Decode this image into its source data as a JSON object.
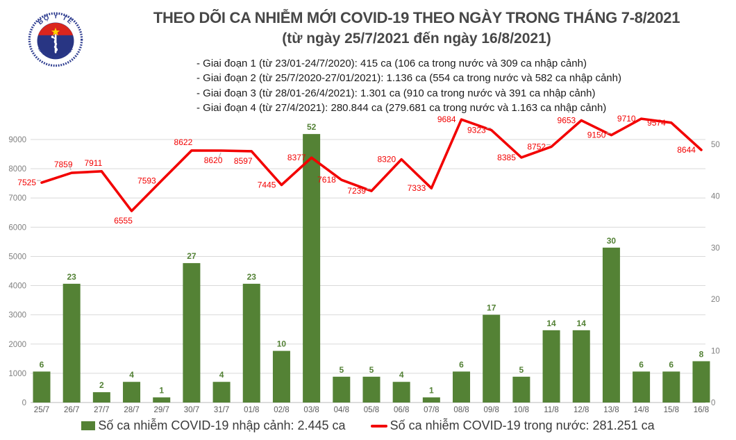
{
  "header": {
    "logo": {
      "top_text": "BỘ Y TẾ",
      "bottom_text": "MINISTRY OF HEALTH",
      "symbol": "rod-of-asclepius",
      "flag_star_color": "#ffd400",
      "band_color": "#da251d",
      "disc_color": "#283583",
      "ring_color": "#2d3c8f"
    },
    "phases": [
      "- Giai đoạn 1 (từ 23/01-24/7/2020): 415 ca (106 ca trong nước và 309 ca nhập cảnh)",
      "- Giai đoạn 2 (từ 25/7/2020-27/01/2021): 1.136 ca (554 ca trong nước và 582 ca nhập cảnh)",
      "- Giai đoạn 3 (từ 28/01-26/4/2021): 1.301 ca (910 ca trong nước và 391 ca nhập cảnh)",
      "- Giai đoạn 4 (từ 27/4/2021): 280.844 ca (279.681 ca trong nước và 1.163 ca nhập cảnh)"
    ]
  },
  "chart_data": {
    "type": "bar+line combo",
    "title": "THEO DÕI CA NHIỄM MỚI COVID-19 THEO NGÀY TRONG THÁNG 7-8/2021",
    "subtitle": "(từ ngày 25/7/2021 đến ngày 16/8/2021)",
    "categories": [
      "25/7",
      "26/7",
      "27/7",
      "28/7",
      "29/7",
      "30/7",
      "31/7",
      "01/8",
      "02/8",
      "03/8",
      "04/8",
      "05/8",
      "06/8",
      "07/8",
      "08/8",
      "09/8",
      "10/8",
      "11/8",
      "12/8",
      "13/8",
      "14/8",
      "15/8",
      "16/8"
    ],
    "series": [
      {
        "name": "Số ca nhiễm COVID-19 nhập cảnh",
        "type": "bar",
        "axis": "right",
        "total": "2.445 ca",
        "values": [
          6,
          23,
          2,
          4,
          1,
          27,
          4,
          23,
          10,
          52,
          5,
          5,
          4,
          1,
          6,
          17,
          5,
          14,
          14,
          30,
          6,
          6,
          8
        ]
      },
      {
        "name": "Số ca nhiễm COVID-19 trong nước",
        "type": "line",
        "axis": "left",
        "total": "281.251 ca",
        "values": [
          7525,
          7859,
          7911,
          6555,
          7593,
          8622,
          8620,
          8597,
          7445,
          8377,
          7618,
          7239,
          8320,
          7333,
          9684,
          9323,
          8385,
          8752,
          9653,
          9150,
          9710,
          9574,
          8644
        ],
        "label_pos": [
          "left",
          "above",
          "above",
          "below",
          "left",
          "above",
          "below",
          "below",
          "left",
          "left",
          "left",
          "left",
          "left",
          "left",
          "left",
          "left",
          "left",
          "left",
          "left",
          "left",
          "left",
          "left",
          "left"
        ],
        "leaders": [
          true,
          true,
          false,
          false,
          false,
          false,
          true,
          false,
          false,
          false,
          false,
          true,
          false,
          false,
          false,
          true,
          false,
          true,
          false,
          true,
          false,
          false,
          false
        ]
      }
    ],
    "left_axis": {
      "min": 0,
      "max": 9000,
      "ticks": [
        0,
        1000,
        2000,
        3000,
        4000,
        5000,
        6000,
        7000,
        8000,
        9000
      ]
    },
    "right_axis": {
      "min": 0,
      "max": 50,
      "ticks": [
        0,
        10,
        20,
        30,
        40,
        50
      ]
    },
    "grid": "horizontal gridlines on left-axis ticks",
    "legend_position": "bottom",
    "colors": {
      "bar": "#548235",
      "bar_label": "#538135",
      "line": "#f20000",
      "line_label": "#f20000",
      "grid": "#d9d9d9",
      "baseline": "#c6c6c6",
      "axis_text": "#7f7f7f",
      "date_text": "#595959",
      "leader": "#b7b7b7"
    }
  },
  "legend": [
    {
      "swatch": "green-bar-swatch",
      "label": "Số ca nhiễm COVID-19 nhập cảnh: 2.445 ca"
    },
    {
      "swatch": "red-line-swatch",
      "label": "Số ca nhiễm COVID-19 trong nước: 281.251 ca"
    }
  ]
}
